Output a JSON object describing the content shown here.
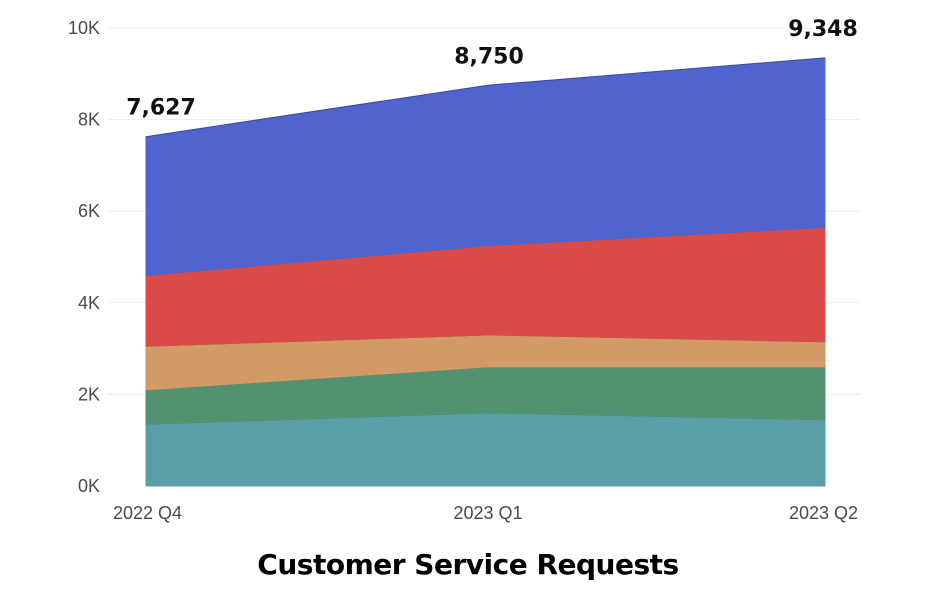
{
  "chart_data": {
    "type": "area",
    "stacked": true,
    "title": "Customer Service Requests",
    "xlabel": "",
    "ylabel": "",
    "categories": [
      "2022 Q4",
      "2023 Q1",
      "2023 Q2"
    ],
    "ylim": [
      0,
      10000
    ],
    "y_ticks": [
      {
        "value": 0,
        "label": "0K"
      },
      {
        "value": 2000,
        "label": "2K"
      },
      {
        "value": 4000,
        "label": "4K"
      },
      {
        "value": 6000,
        "label": "6K"
      },
      {
        "value": 8000,
        "label": "8K"
      },
      {
        "value": 10000,
        "label": "10K"
      }
    ],
    "grid": true,
    "series": [
      {
        "values": [
          1350,
          1600,
          1450
        ],
        "color": "#5a9ea8"
      },
      {
        "values": [
          750,
          1000,
          1150
        ],
        "color": "#529270"
      },
      {
        "values": [
          950,
          700,
          550
        ],
        "color": "#d19a67"
      },
      {
        "values": [
          1550,
          1950,
          2500
        ],
        "color": "#d94b48"
      },
      {
        "values": [
          3027,
          3500,
          3698
        ],
        "color": "#4f64cf"
      }
    ],
    "totals": [
      7627,
      8750,
      9348
    ],
    "total_labels": [
      "7,627",
      "8,750",
      "9,348"
    ]
  }
}
